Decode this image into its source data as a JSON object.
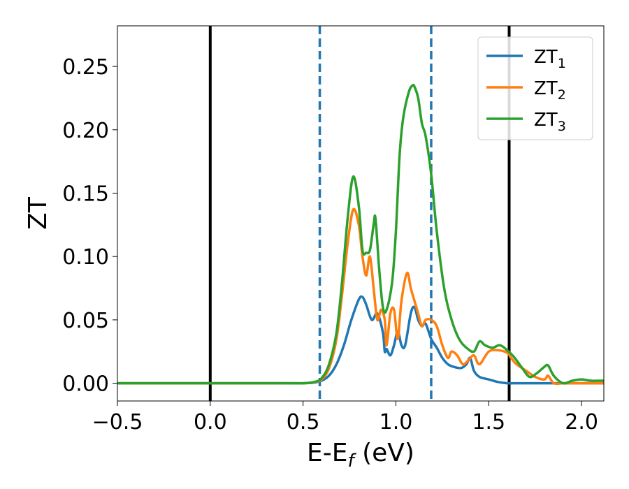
{
  "chart_data": {
    "type": "line",
    "xlabel": "E-E",
    "xlabel_sub": "f",
    "xlabel_unit": " (eV)",
    "ylabel": "ZT",
    "xlim": [
      -0.5,
      2.12
    ],
    "ylim": [
      -0.014,
      0.282
    ],
    "xticks": [
      -0.5,
      0.0,
      0.5,
      1.0,
      1.5,
      2.0
    ],
    "xtick_labels": [
      "−0.5",
      "0.0",
      "0.5",
      "1.0",
      "1.5",
      "2.0"
    ],
    "yticks": [
      0.0,
      0.05,
      0.1,
      0.15,
      0.2,
      0.25
    ],
    "ytick_labels": [
      "0.00",
      "0.05",
      "0.10",
      "0.15",
      "0.20",
      "0.25"
    ],
    "grid": false,
    "legend_position": "top-right",
    "vlines": [
      {
        "x": 0.0,
        "style": "solid",
        "color": "#000000"
      },
      {
        "x": 1.61,
        "style": "solid",
        "color": "#000000"
      },
      {
        "x": 0.59,
        "style": "dashed",
        "color": "#1f77b4"
      },
      {
        "x": 1.19,
        "style": "dashed",
        "color": "#1f77b4"
      }
    ],
    "series": [
      {
        "name": "ZT",
        "sub": "1",
        "color": "#1f77b4",
        "x": [
          -0.5,
          0.4,
          0.5,
          0.56,
          0.6,
          0.64,
          0.68,
          0.72,
          0.76,
          0.8,
          0.82,
          0.84,
          0.87,
          0.9,
          0.93,
          0.94,
          0.95,
          0.97,
          0.99,
          1.01,
          1.03,
          1.05,
          1.08,
          1.1,
          1.12,
          1.14,
          1.16,
          1.19,
          1.22,
          1.25,
          1.28,
          1.31,
          1.35,
          1.38,
          1.4,
          1.42,
          1.45,
          1.5,
          1.55,
          1.6,
          1.65,
          1.7,
          1.75,
          1.8,
          1.85,
          1.9,
          1.95,
          2.0,
          2.05,
          2.12
        ],
        "y": [
          0.0,
          0.0,
          0.0,
          0.0005,
          0.002,
          0.006,
          0.015,
          0.03,
          0.05,
          0.066,
          0.068,
          0.062,
          0.05,
          0.055,
          0.04,
          0.025,
          0.027,
          0.022,
          0.03,
          0.041,
          0.03,
          0.03,
          0.055,
          0.06,
          0.05,
          0.045,
          0.047,
          0.035,
          0.028,
          0.02,
          0.015,
          0.013,
          0.012,
          0.015,
          0.02,
          0.01,
          0.005,
          0.003,
          0.001,
          0.0,
          0.0,
          0.0,
          0.0,
          0.0,
          0.0,
          0.0,
          0.0,
          0.0,
          0.0,
          0.0
        ]
      },
      {
        "name": "ZT",
        "sub": "2",
        "color": "#ff7f0e",
        "x": [
          -0.5,
          0.4,
          0.5,
          0.56,
          0.6,
          0.64,
          0.68,
          0.71,
          0.74,
          0.77,
          0.8,
          0.82,
          0.84,
          0.86,
          0.88,
          0.9,
          0.92,
          0.94,
          0.95,
          0.97,
          0.99,
          1.01,
          1.03,
          1.06,
          1.08,
          1.1,
          1.12,
          1.14,
          1.16,
          1.19,
          1.22,
          1.25,
          1.28,
          1.3,
          1.33,
          1.36,
          1.39,
          1.42,
          1.45,
          1.5,
          1.55,
          1.6,
          1.62,
          1.65,
          1.7,
          1.75,
          1.8,
          1.82,
          1.85,
          1.9,
          1.95,
          2.0,
          2.05,
          2.12
        ],
        "y": [
          0.0,
          0.0,
          0.0,
          0.0008,
          0.003,
          0.012,
          0.035,
          0.07,
          0.11,
          0.137,
          0.125,
          0.1,
          0.085,
          0.1,
          0.075,
          0.05,
          0.058,
          0.05,
          0.03,
          0.055,
          0.058,
          0.035,
          0.065,
          0.087,
          0.075,
          0.065,
          0.055,
          0.045,
          0.05,
          0.05,
          0.045,
          0.03,
          0.02,
          0.025,
          0.022,
          0.015,
          0.018,
          0.022,
          0.015,
          0.025,
          0.026,
          0.024,
          0.02,
          0.015,
          0.01,
          0.005,
          0.003,
          0.006,
          0.0,
          0.0,
          0.0,
          0.0,
          0.0,
          0.0
        ]
      },
      {
        "name": "ZT",
        "sub": "3",
        "color": "#2ca02c",
        "x": [
          -0.5,
          0.4,
          0.5,
          0.56,
          0.6,
          0.64,
          0.68,
          0.71,
          0.74,
          0.77,
          0.8,
          0.82,
          0.84,
          0.86,
          0.88,
          0.89,
          0.91,
          0.93,
          0.95,
          0.98,
          1.0,
          1.02,
          1.04,
          1.07,
          1.09,
          1.1,
          1.12,
          1.14,
          1.16,
          1.19,
          1.22,
          1.26,
          1.3,
          1.34,
          1.38,
          1.42,
          1.45,
          1.48,
          1.52,
          1.56,
          1.6,
          1.64,
          1.68,
          1.72,
          1.76,
          1.8,
          1.82,
          1.85,
          1.9,
          1.95,
          2.0,
          2.05,
          2.12
        ],
        "y": [
          0.0,
          0.0,
          0.0,
          0.001,
          0.004,
          0.015,
          0.04,
          0.08,
          0.13,
          0.163,
          0.14,
          0.105,
          0.103,
          0.105,
          0.125,
          0.13,
          0.09,
          0.06,
          0.058,
          0.08,
          0.12,
          0.18,
          0.21,
          0.23,
          0.235,
          0.234,
          0.225,
          0.205,
          0.195,
          0.165,
          0.12,
          0.075,
          0.05,
          0.035,
          0.028,
          0.025,
          0.033,
          0.03,
          0.028,
          0.03,
          0.026,
          0.02,
          0.012,
          0.005,
          0.008,
          0.013,
          0.014,
          0.006,
          0.0,
          0.002,
          0.003,
          0.002,
          0.002
        ]
      }
    ]
  }
}
